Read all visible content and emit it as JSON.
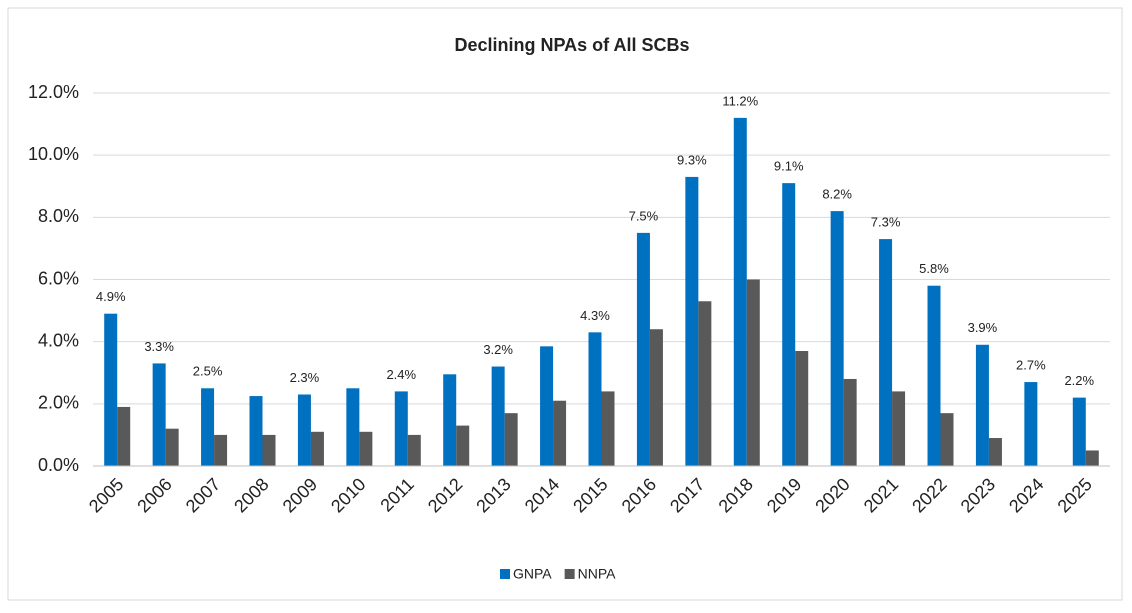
{
  "chart_data": {
    "type": "bar",
    "title": "Declining NPAs of All SCBs",
    "categories": [
      "2005",
      "2006",
      "2007",
      "2008",
      "2009",
      "2010",
      "2011",
      "2012",
      "2013",
      "2014",
      "2015",
      "2016",
      "2017",
      "2018",
      "2019",
      "2020",
      "2021",
      "2022",
      "2023",
      "2024",
      "2025"
    ],
    "series": [
      {
        "name": "GNPA",
        "color": "#0070c0",
        "values": [
          4.9,
          3.3,
          2.5,
          2.25,
          2.3,
          2.5,
          2.4,
          2.95,
          3.2,
          3.85,
          4.3,
          7.5,
          9.3,
          11.2,
          9.1,
          8.2,
          7.3,
          5.8,
          3.9,
          2.7,
          2.2
        ],
        "value_labels": [
          "4.9%",
          "3.3%",
          "2.5%",
          null,
          "2.3%",
          null,
          "2.4%",
          null,
          "3.2%",
          null,
          "4.3%",
          "7.5%",
          "9.3%",
          "11.2%",
          "9.1%",
          "8.2%",
          "7.3%",
          "5.8%",
          "3.9%",
          "2.7%",
          "2.2%"
        ]
      },
      {
        "name": "NNPA",
        "color": "#595959",
        "values": [
          1.9,
          1.2,
          1.0,
          1.0,
          1.1,
          1.1,
          1.0,
          1.3,
          1.7,
          2.1,
          2.4,
          4.4,
          5.3,
          6.0,
          3.7,
          2.8,
          2.4,
          1.7,
          0.9,
          null,
          0.5
        ]
      }
    ],
    "ylim": [
      0,
      12
    ],
    "yticks": [
      {
        "value": 0,
        "label": "0.0%"
      },
      {
        "value": 2,
        "label": "2.0%"
      },
      {
        "value": 4,
        "label": "4.0%"
      },
      {
        "value": 6,
        "label": "6.0%"
      },
      {
        "value": 8,
        "label": "8.0%"
      },
      {
        "value": 10,
        "label": "10.0%"
      },
      {
        "value": 12,
        "label": "12.0%"
      }
    ],
    "grid": true,
    "legend": "bottom"
  }
}
